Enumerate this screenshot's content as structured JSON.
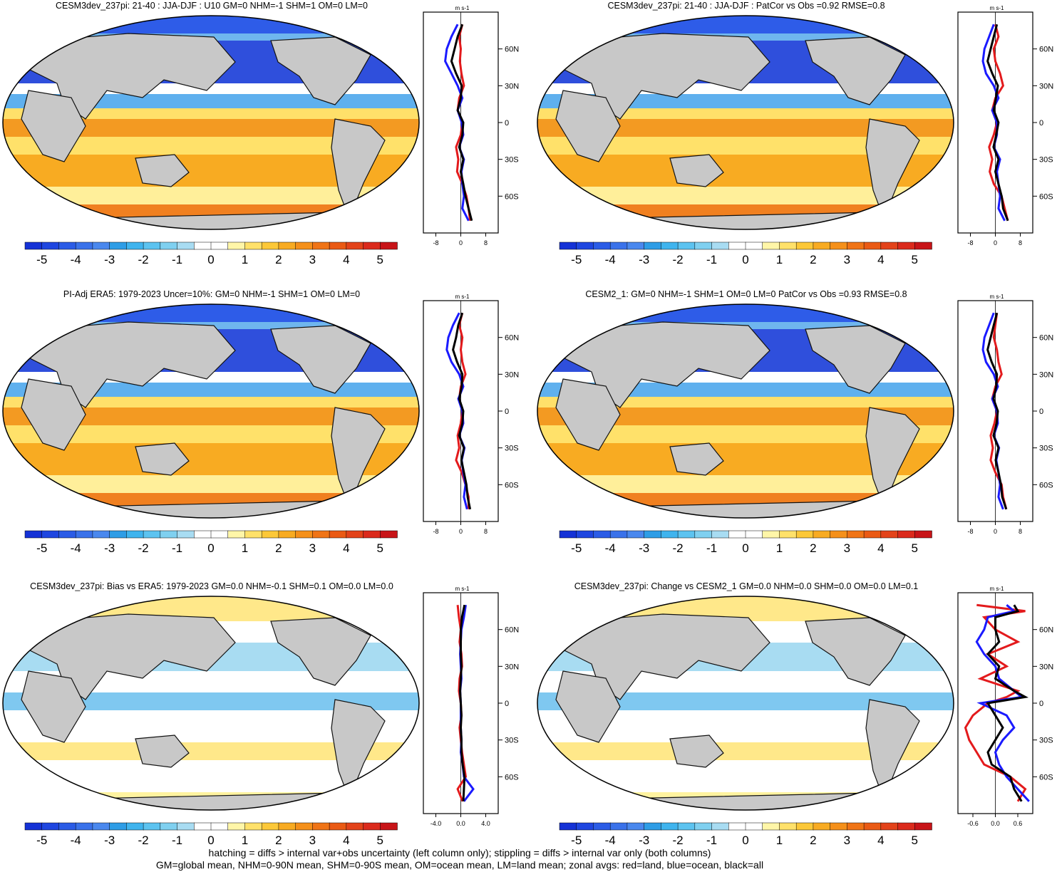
{
  "figure": {
    "variable": "U10",
    "units_label": "m s-1",
    "caption_line1": "hatching = diffs > internal var+obs uncertainty (left column only); stippling = diffs > internal var only (both columns)",
    "caption_line2": "GM=global mean, NHM=0-90N mean, SHM=0-90S mean, OM=ocean mean, LM=land mean; zonal avgs: red=land, blue=ocean, black=all"
  },
  "colorbar": {
    "levels": [
      -5.5,
      -5,
      -4.5,
      -4,
      -3.5,
      -3,
      -2.5,
      -2,
      -1.5,
      -1,
      -0.5,
      0,
      0.5,
      1,
      1.5,
      2,
      2.5,
      3,
      3.5,
      4,
      4.5,
      5,
      5.5
    ],
    "tick_labels": [
      "-5",
      "-4",
      "-3",
      "-2",
      "-1",
      "0",
      "1",
      "2",
      "3",
      "4",
      "5"
    ],
    "colors": [
      "#1532d6",
      "#1f46e0",
      "#2b5ce6",
      "#3a72ea",
      "#4a88ee",
      "#2e9de6",
      "#3fb4ee",
      "#5cc3f0",
      "#7fd0f0",
      "#a8dcf2",
      "#ffffff",
      "#ffffff",
      "#fff6a8",
      "#ffe16a",
      "#fcc838",
      "#f8ab22",
      "#f5901a",
      "#f07416",
      "#ea5a14",
      "#e3431a",
      "#db2a1c",
      "#c81418"
    ]
  },
  "chart_data": [
    {
      "type": "map+line",
      "title": "CESM3dev_237pi: 21-40 : JJA-DJF : U10 GM=0 NHM=-1 SHM=1 OM=0 LM=0",
      "zonal_xlim": [
        -12,
        12
      ],
      "zonal_xticks": [
        "-8",
        "0",
        "8"
      ],
      "lat_ticks": [
        "60N",
        "30N",
        "0",
        "30S",
        "60S"
      ],
      "zonal_series": [
        {
          "name": "land",
          "color": "#e31a1c",
          "lat": [
            80,
            70,
            60,
            50,
            40,
            30,
            20,
            10,
            0,
            -10,
            -20,
            -30,
            -40,
            -50,
            -60,
            -70,
            -80
          ],
          "values": [
            0.5,
            -0.5,
            0,
            -0.3,
            0.2,
            1,
            -0.5,
            -1,
            0.5,
            0,
            -1.5,
            -0.8,
            -1.2,
            0.5,
            1.8,
            2.5,
            3
          ]
        },
        {
          "name": "ocean",
          "color": "#1a1aff",
          "lat": [
            80,
            70,
            60,
            50,
            40,
            30,
            20,
            10,
            0,
            -10,
            -20,
            -30,
            -40,
            -50,
            -60,
            -70,
            -80
          ],
          "values": [
            -1,
            -3,
            -4.5,
            -5,
            -3,
            -1,
            0.5,
            -1,
            0.3,
            0.8,
            -0.5,
            1,
            0.2,
            0.5,
            1,
            0.5,
            2.5
          ]
        },
        {
          "name": "all",
          "color": "#000000",
          "lat": [
            80,
            70,
            60,
            50,
            40,
            30,
            20,
            10,
            0,
            -10,
            -20,
            -30,
            -40,
            -50,
            -60,
            -70,
            -80
          ],
          "values": [
            0.5,
            -1,
            -2,
            -3,
            -1.5,
            0.3,
            0,
            -1,
            0.8,
            0.5,
            -0.5,
            0.8,
            0,
            0.8,
            1.5,
            2.5,
            3.5
          ]
        }
      ]
    },
    {
      "type": "map+line",
      "title": "CESM3dev_237pi: 21-40 : JJA-DJF : PatCor vs Obs =0.92 RMSE=0.8",
      "zonal_xlim": [
        -12,
        12
      ],
      "zonal_xticks": [
        "-8",
        "0",
        "8"
      ],
      "lat_ticks": [
        "60N",
        "30N",
        "0",
        "30S",
        "60S"
      ],
      "zonal_series": [
        {
          "name": "land",
          "color": "#e31a1c",
          "lat": [
            80,
            70,
            60,
            50,
            40,
            30,
            20,
            10,
            0,
            -10,
            -20,
            -30,
            -40,
            -50,
            -60,
            -70,
            -80
          ],
          "values": [
            0,
            1,
            -0.5,
            0,
            1.5,
            2.5,
            0,
            -1,
            0.5,
            -0.5,
            -2,
            -1,
            -1.8,
            -0.5,
            2,
            3,
            4
          ]
        },
        {
          "name": "ocean",
          "color": "#1a1aff",
          "lat": [
            80,
            70,
            60,
            50,
            40,
            30,
            20,
            10,
            0,
            -10,
            -20,
            -30,
            -40,
            -50,
            -60,
            -70,
            -80
          ],
          "values": [
            -0.5,
            -2,
            -3.5,
            -4,
            -3,
            -0.5,
            1,
            -1,
            0.5,
            0.5,
            -0.5,
            1.5,
            0.5,
            1,
            1.5,
            1,
            3
          ]
        },
        {
          "name": "all",
          "color": "#000000",
          "lat": [
            80,
            70,
            60,
            50,
            40,
            30,
            20,
            10,
            0,
            -10,
            -20,
            -30,
            -40,
            -50,
            -60,
            -70,
            -80
          ],
          "values": [
            0.5,
            -0.5,
            -1.5,
            -2.5,
            -1,
            0.8,
            0.2,
            -0.5,
            1,
            0.3,
            -0.6,
            1,
            0,
            1,
            2,
            2.5,
            4
          ]
        }
      ]
    },
    {
      "type": "map+line",
      "title": "PI-Adj ERA5: 1979-2023 Uncer=10%: GM=0 NHM=-1 SHM=1 OM=0 LM=0",
      "zonal_xlim": [
        -12,
        12
      ],
      "zonal_xticks": [
        "-8",
        "0",
        "8"
      ],
      "lat_ticks": [
        "60N",
        "30N",
        "0",
        "30S",
        "60S"
      ],
      "zonal_series": [
        {
          "name": "land",
          "color": "#e31a1c",
          "lat": [
            80,
            70,
            60,
            50,
            40,
            30,
            20,
            10,
            0,
            -10,
            -20,
            -30,
            -40,
            -50,
            -60,
            -70,
            -80
          ],
          "values": [
            0.5,
            -0.5,
            0.5,
            0,
            0.5,
            1.5,
            0,
            -0.5,
            0.5,
            0,
            -1,
            -0.5,
            -1.5,
            0.3,
            1.5,
            2.5,
            2.5
          ]
        },
        {
          "name": "ocean",
          "color": "#1a1aff",
          "lat": [
            80,
            70,
            60,
            50,
            40,
            30,
            20,
            10,
            0,
            -10,
            -20,
            -30,
            -40,
            -50,
            -60,
            -70,
            -80
          ],
          "values": [
            -0.5,
            -2.5,
            -4,
            -4.5,
            -3,
            -0.5,
            0.8,
            -0.8,
            0.5,
            0.8,
            -0.5,
            1.2,
            0.3,
            0.8,
            1.5,
            1,
            2
          ]
        },
        {
          "name": "all",
          "color": "#000000",
          "lat": [
            80,
            70,
            60,
            50,
            40,
            30,
            20,
            10,
            0,
            -10,
            -20,
            -30,
            -40,
            -50,
            -60,
            -70,
            -80
          ],
          "values": [
            0.5,
            -0.8,
            -1.5,
            -2.5,
            -1.2,
            0.5,
            0.3,
            -0.5,
            0.8,
            0.5,
            -0.5,
            1,
            0.2,
            1,
            1.8,
            2.2,
            3
          ]
        }
      ]
    },
    {
      "type": "map+line",
      "title": "CESM2_1: GM=0 NHM=-1 SHM=1 OM=0 LM=0 PatCor vs Obs =0.93 RMSE=0.8",
      "zonal_xlim": [
        -12,
        12
      ],
      "zonal_xticks": [
        "-8",
        "0",
        "8"
      ],
      "lat_ticks": [
        "60N",
        "30N",
        "0",
        "30S",
        "60S"
      ],
      "zonal_series": [
        {
          "name": "land",
          "color": "#e31a1c",
          "lat": [
            80,
            70,
            60,
            50,
            40,
            30,
            20,
            10,
            0,
            -10,
            -20,
            -30,
            -40,
            -50,
            -60,
            -70,
            -80
          ],
          "values": [
            0.5,
            0,
            -0.5,
            0.5,
            1,
            2,
            0,
            -1,
            0.5,
            -0.3,
            -1.5,
            -0.8,
            -1.5,
            0,
            2,
            2.5,
            3.5
          ]
        },
        {
          "name": "ocean",
          "color": "#1a1aff",
          "lat": [
            80,
            70,
            60,
            50,
            40,
            30,
            20,
            10,
            0,
            -10,
            -20,
            -30,
            -40,
            -50,
            -60,
            -70,
            -80
          ],
          "values": [
            -0.5,
            -2,
            -3.5,
            -4,
            -3,
            -0.5,
            0.8,
            -1,
            0.5,
            0.8,
            -0.5,
            1.2,
            0.3,
            1,
            1.5,
            1,
            2.5
          ]
        },
        {
          "name": "all",
          "color": "#000000",
          "lat": [
            80,
            70,
            60,
            50,
            40,
            30,
            20,
            10,
            0,
            -10,
            -20,
            -30,
            -40,
            -50,
            -60,
            -70,
            -80
          ],
          "values": [
            0.5,
            -0.5,
            -1.5,
            -2.5,
            -1.2,
            0.5,
            0.3,
            -0.6,
            0.8,
            0.4,
            -0.6,
            1,
            0.1,
            1,
            1.8,
            2.2,
            3.5
          ]
        }
      ]
    },
    {
      "type": "map+line",
      "title": "CESM3dev_237pi: Bias vs ERA5: 1979-2023 GM=0.0 NHM=-0.1 SHM=0.1 OM=0.0 LM=0.0",
      "zonal_xlim": [
        -6,
        6
      ],
      "zonal_xticks": [
        "-4.0",
        "0.0",
        "4.0"
      ],
      "lat_ticks": [
        "60N",
        "30N",
        "0",
        "30S",
        "60S"
      ],
      "zonal_series": [
        {
          "name": "land",
          "color": "#e31a1c",
          "lat": [
            80,
            70,
            60,
            50,
            40,
            30,
            20,
            10,
            0,
            -10,
            -20,
            -30,
            -40,
            -50,
            -60,
            -70,
            -80
          ],
          "values": [
            -0.5,
            -0.3,
            0,
            -0.2,
            0.1,
            0.2,
            -0.2,
            -0.3,
            0,
            0.1,
            -0.2,
            0,
            0.2,
            0.5,
            0.8,
            -0.5,
            0.3
          ]
        },
        {
          "name": "ocean",
          "color": "#1a1aff",
          "lat": [
            80,
            70,
            60,
            50,
            40,
            30,
            20,
            10,
            0,
            -10,
            -20,
            -30,
            -40,
            -50,
            -60,
            -70,
            -80
          ],
          "values": [
            0.8,
            0.5,
            0.1,
            0,
            -0.1,
            0,
            0.1,
            -0.1,
            0,
            0,
            0,
            0.1,
            0,
            0.3,
            0.5,
            2,
            0.5
          ]
        },
        {
          "name": "all",
          "color": "#000000",
          "lat": [
            80,
            70,
            60,
            50,
            40,
            30,
            20,
            10,
            0,
            -10,
            -20,
            -30,
            -40,
            -50,
            -60,
            -70,
            -80
          ],
          "values": [
            0.6,
            0.2,
            0,
            0,
            0,
            0.1,
            0,
            -0.1,
            0,
            0.1,
            0,
            0.1,
            0.1,
            0.3,
            0.6,
            0.5,
            0.4
          ]
        }
      ]
    },
    {
      "type": "map+line",
      "title": "CESM3dev_237pi: Change vs CESM2_1 GM=0.0 NHM=0.0 SHM=0.0 OM=0.0 LM=0.1",
      "zonal_xlim": [
        -1.0,
        1.0
      ],
      "zonal_xticks": [
        "-0.6",
        "0.0",
        "0.6"
      ],
      "lat_ticks": [
        "60N",
        "30N",
        "0",
        "30S",
        "60S"
      ],
      "zonal_series": [
        {
          "name": "land",
          "color": "#e31a1c",
          "lat": [
            80,
            75,
            70,
            60,
            50,
            40,
            30,
            20,
            10,
            5,
            0,
            -10,
            -20,
            -30,
            -40,
            -50,
            -60,
            -70,
            -80
          ],
          "values": [
            -0.5,
            0.8,
            -0.3,
            0,
            0.6,
            -0.2,
            0.3,
            -0.4,
            0.6,
            0.3,
            -0.2,
            -0.6,
            -0.8,
            -0.7,
            -0.5,
            -0.3,
            0.4,
            0.8,
            0.6
          ]
        },
        {
          "name": "ocean",
          "color": "#1a1aff",
          "lat": [
            80,
            75,
            70,
            60,
            50,
            40,
            30,
            20,
            10,
            5,
            0,
            -10,
            -20,
            -30,
            -40,
            -50,
            -60,
            -70,
            -80
          ],
          "values": [
            0.3,
            0.5,
            -0.2,
            -0.3,
            -0.5,
            -0.3,
            0,
            0.1,
            0.5,
            0.7,
            -0.4,
            0.3,
            0.5,
            0.2,
            0,
            0.1,
            0.3,
            0.6,
            0.9
          ]
        },
        {
          "name": "all",
          "color": "#000000",
          "lat": [
            80,
            75,
            70,
            60,
            50,
            40,
            30,
            20,
            10,
            5,
            0,
            -10,
            -20,
            -30,
            -40,
            -50,
            -60,
            -70,
            -80
          ],
          "values": [
            0.5,
            0.6,
            0,
            0,
            0.1,
            -0.2,
            0.1,
            0,
            0.5,
            0.8,
            -0.2,
            0,
            0.2,
            0,
            -0.2,
            -0.1,
            0.4,
            0.5,
            0.7
          ]
        }
      ]
    }
  ]
}
